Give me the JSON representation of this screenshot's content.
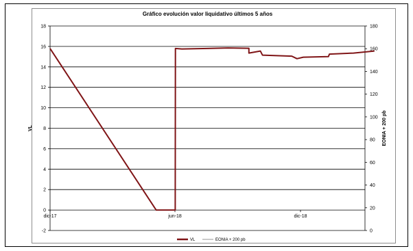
{
  "chart_data": {
    "type": "line",
    "title": "Gráfico evolución valor liquidativo últimos 5 años",
    "ylabel_left": "VL",
    "ylabel_right": "EONIA + 200 pb",
    "ylim_left": [
      -2,
      18
    ],
    "ylim_right": [
      0,
      180
    ],
    "yticks_left": [
      "-2",
      "0",
      "2",
      "4",
      "6",
      "8",
      "10",
      "12",
      "14",
      "16",
      "18"
    ],
    "yticks_right": [
      "0",
      "20",
      "40",
      "60",
      "80",
      "100",
      "120",
      "140",
      "160",
      "180"
    ],
    "xticks": [
      "dic-17",
      "jun-18",
      "dic-18"
    ],
    "grid": true,
    "legend_position": "bottom",
    "series": [
      {
        "name": "VL",
        "axis": "left",
        "color": "#7f1416",
        "points": [
          [
            "dic-17",
            15.8
          ],
          [
            "may-18",
            0.0
          ],
          [
            "may-18",
            0.0
          ],
          [
            "may-18",
            15.8
          ],
          [
            "jun-18",
            15.75
          ],
          [
            "jul-18",
            15.8
          ],
          [
            "ago-18",
            15.85
          ],
          [
            "sep-18",
            15.82
          ],
          [
            "sep-18",
            15.35
          ],
          [
            "oct-18",
            15.55
          ],
          [
            "oct-18",
            15.15
          ],
          [
            "nov-18",
            15.05
          ],
          [
            "nov-18",
            14.8
          ],
          [
            "dic-18",
            14.95
          ],
          [
            "ene-19",
            15.0
          ],
          [
            "ene-19",
            15.25
          ],
          [
            "feb-19",
            15.35
          ],
          [
            "mar-19",
            15.55
          ]
        ]
      },
      {
        "name": "EONIA + 200 pb",
        "axis": "right",
        "color": "#a6a6a6",
        "points": []
      }
    ]
  }
}
